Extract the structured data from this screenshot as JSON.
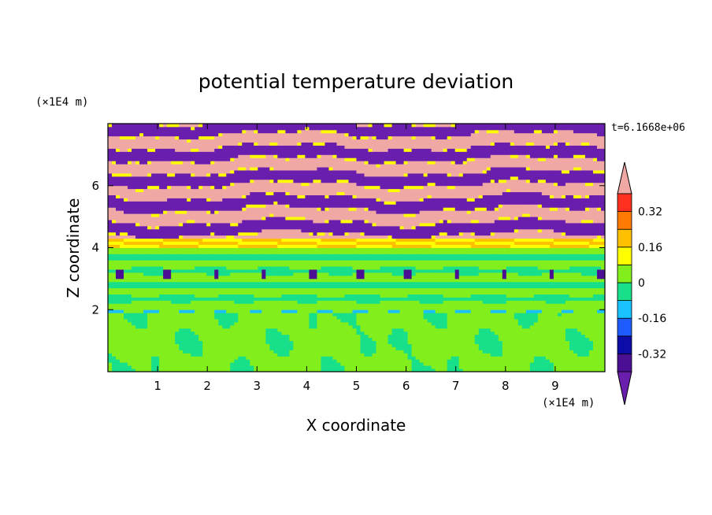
{
  "chart_data": {
    "type": "heatmap",
    "title": "potential temperature deviation",
    "xlabel": "X coordinate",
    "ylabel": "Z coordinate",
    "x_unit": "(×1E4 m)",
    "y_unit": "(×1E4 m)",
    "time_label": "t=6.1668e+06",
    "xlim": [
      0,
      10
    ],
    "ylim": [
      0,
      8
    ],
    "x_ticks": [
      1,
      2,
      3,
      4,
      5,
      6,
      7,
      8,
      9
    ],
    "y_ticks": [
      2,
      4,
      6
    ],
    "x_tick_labels": [
      "1",
      "2",
      "3",
      "4",
      "5",
      "6",
      "7",
      "8",
      "9"
    ],
    "y_tick_labels": [
      "2",
      "4",
      "6"
    ],
    "colorbar": {
      "levels": [
        -0.48,
        -0.4,
        -0.32,
        -0.24,
        -0.16,
        -0.08,
        0,
        0.08,
        0.16,
        0.24,
        0.32,
        0.4,
        0.48
      ],
      "colors": [
        "#6a1eae",
        "#4b0f93",
        "#0c0ca8",
        "#1f5cff",
        "#19c2ff",
        "#18e08a",
        "#82ee1c",
        "#ffff00",
        "#ffc000",
        "#ff7a00",
        "#ff3020",
        "#f0a8a4"
      ],
      "tick_labels": [
        "0.32",
        "0.16",
        "0",
        "-0.16",
        "-0.32"
      ],
      "tick_values": [
        0.32,
        0.16,
        0,
        -0.16,
        -0.32
      ],
      "extend": "both"
    },
    "bands": [
      {
        "zmin": 0.0,
        "zmax": 1.9,
        "dominant": 0.02,
        "secondary": -0.02,
        "description_values": [
          0.02,
          -0.02
        ]
      },
      {
        "zmin": 1.9,
        "zmax": 4.0,
        "dominant": 0.02,
        "secondary": -0.02,
        "description_values": [
          0.02,
          -0.02
        ]
      },
      {
        "zmin": 4.0,
        "zmax": 4.3,
        "dominant": 0.2,
        "secondary": 0.1,
        "description_values": [
          0.2,
          0.1
        ]
      },
      {
        "zmin": 4.3,
        "zmax": 8.0,
        "dominant": 0.45,
        "secondary": -0.45,
        "description_values": [
          0.45,
          -0.45
        ]
      }
    ]
  }
}
